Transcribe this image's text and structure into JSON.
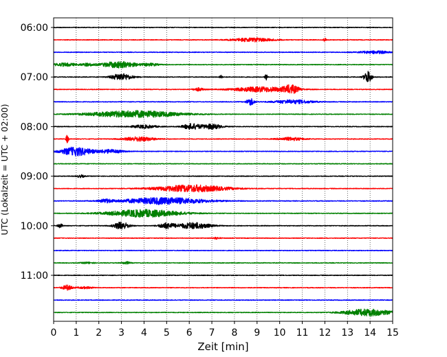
{
  "chart_data": {
    "type": "line",
    "title": "",
    "xlabel": "Zeit  [min]",
    "ylabel": "UTC (Lokalzeit = UTC + 02:00)",
    "xlim": [
      0,
      15
    ],
    "x_ticks": [
      0,
      1,
      2,
      3,
      4,
      5,
      6,
      7,
      8,
      9,
      10,
      11,
      12,
      13,
      14,
      15
    ],
    "x_tick_labels": [
      "0",
      "1",
      "2",
      "3",
      "4",
      "5",
      "6",
      "7",
      "8",
      "9",
      "10",
      "11",
      "12",
      "13",
      "14",
      "15"
    ],
    "y_tick_labels": [
      "06:00",
      "07:00",
      "08:00",
      "09:00",
      "10:00",
      "11:00"
    ],
    "grid": {
      "x": true,
      "x_style": "dotted",
      "y": false
    },
    "legend": "none",
    "trace_interval_minutes": 15,
    "trace_colors": [
      "#000000",
      "#ff0000",
      "#0000ff",
      "#008000"
    ],
    "series": [
      {
        "start": "06:00",
        "events": []
      },
      {
        "start": "06:15",
        "events": [
          {
            "t": 8.8,
            "width": 1.6,
            "amp": 0.3
          },
          {
            "t": 12.0,
            "width": 0.1,
            "amp": 0.3
          }
        ]
      },
      {
        "start": "06:30",
        "events": [
          {
            "t": 14.2,
            "width": 1.2,
            "amp": 0.22
          }
        ]
      },
      {
        "start": "06:45",
        "events": [
          {
            "t": 0.5,
            "width": 1.0,
            "amp": 0.25
          },
          {
            "t": 1.5,
            "width": 0.5,
            "amp": 0.2
          },
          {
            "t": 2.9,
            "width": 1.4,
            "amp": 0.5
          },
          {
            "t": 4.3,
            "width": 0.6,
            "amp": 0.2
          }
        ]
      },
      {
        "start": "07:00",
        "events": [
          {
            "t": 3.0,
            "width": 0.8,
            "amp": 0.55
          },
          {
            "t": 7.4,
            "width": 0.1,
            "amp": 0.35
          },
          {
            "t": 9.4,
            "width": 0.1,
            "amp": 0.55
          },
          {
            "t": 13.9,
            "width": 0.3,
            "amp": 0.95
          }
        ]
      },
      {
        "start": "07:15",
        "events": [
          {
            "t": 6.4,
            "width": 0.4,
            "amp": 0.25
          },
          {
            "t": 9.2,
            "width": 2.2,
            "amp": 0.4
          },
          {
            "t": 10.5,
            "width": 0.6,
            "amp": 0.6
          }
        ]
      },
      {
        "start": "07:30",
        "events": [
          {
            "t": 8.7,
            "width": 0.3,
            "amp": 0.55
          },
          {
            "t": 10.6,
            "width": 1.5,
            "amp": 0.3
          }
        ]
      },
      {
        "start": "07:45",
        "events": [
          {
            "t": 3.6,
            "width": 3.5,
            "amp": 0.55
          }
        ]
      },
      {
        "start": "08:00",
        "events": [
          {
            "t": 4.0,
            "width": 1.0,
            "amp": 0.25
          },
          {
            "t": 6.1,
            "width": 0.7,
            "amp": 0.45
          },
          {
            "t": 7.0,
            "width": 0.8,
            "amp": 0.4
          }
        ]
      },
      {
        "start": "08:15",
        "events": [
          {
            "t": 0.6,
            "width": 0.1,
            "amp": 0.65
          },
          {
            "t": 3.8,
            "width": 1.2,
            "amp": 0.35
          },
          {
            "t": 10.5,
            "width": 1.0,
            "amp": 0.25
          }
        ]
      },
      {
        "start": "08:30",
        "events": [
          {
            "t": 1.0,
            "width": 1.2,
            "amp": 0.7
          },
          {
            "t": 2.5,
            "width": 1.0,
            "amp": 0.3
          }
        ]
      },
      {
        "start": "08:45",
        "events": []
      },
      {
        "start": "09:00",
        "events": [
          {
            "t": 1.2,
            "width": 0.3,
            "amp": 0.2
          }
        ]
      },
      {
        "start": "09:15",
        "events": [
          {
            "t": 6.1,
            "width": 2.8,
            "amp": 0.55
          }
        ]
      },
      {
        "start": "09:30",
        "events": [
          {
            "t": 4.9,
            "width": 3.2,
            "amp": 0.55
          },
          {
            "t": 2.3,
            "width": 0.5,
            "amp": 0.25
          }
        ]
      },
      {
        "start": "09:45",
        "events": [
          {
            "t": 4.0,
            "width": 2.8,
            "amp": 0.6
          }
        ]
      },
      {
        "start": "10:00",
        "events": [
          {
            "t": 0.3,
            "width": 0.2,
            "amp": 0.3
          },
          {
            "t": 3.0,
            "width": 0.6,
            "amp": 0.6
          },
          {
            "t": 5.0,
            "width": 0.6,
            "amp": 0.45
          },
          {
            "t": 6.2,
            "width": 1.3,
            "amp": 0.5
          }
        ]
      },
      {
        "start": "10:15",
        "events": [
          {
            "t": 7.2,
            "width": 0.3,
            "amp": 0.15
          }
        ]
      },
      {
        "start": "10:30",
        "events": []
      },
      {
        "start": "10:45",
        "events": [
          {
            "t": 3.2,
            "width": 0.3,
            "amp": 0.2
          },
          {
            "t": 1.5,
            "width": 0.5,
            "amp": 0.12
          }
        ]
      },
      {
        "start": "11:00",
        "events": []
      },
      {
        "start": "11:15",
        "events": [
          {
            "t": 0.6,
            "width": 0.4,
            "amp": 0.4
          },
          {
            "t": 1.4,
            "width": 0.6,
            "amp": 0.15
          }
        ]
      },
      {
        "start": "11:30",
        "events": []
      },
      {
        "start": "11:45",
        "events": [
          {
            "t": 13.9,
            "width": 1.8,
            "amp": 0.55
          }
        ]
      }
    ]
  }
}
